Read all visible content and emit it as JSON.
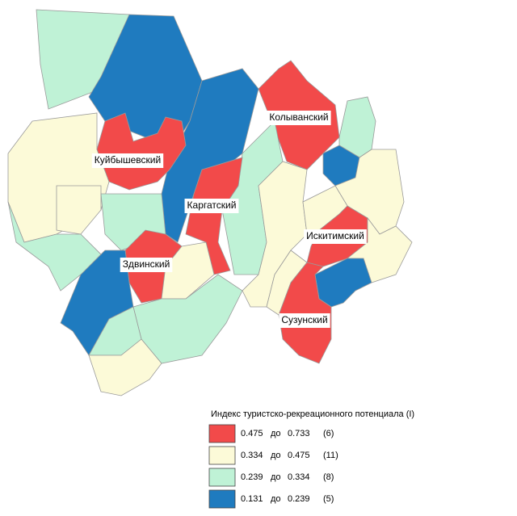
{
  "districts": [
    "Куйбышевский",
    "Колыванский",
    "Каргатский",
    "Искитимский",
    "Здвинский",
    "Сузунский"
  ],
  "legend": {
    "title": "Индекс туристско-рекреационного потенциала (I)",
    "items": [
      {
        "from": "0.475",
        "word": "до",
        "to": "0.733",
        "count": "(6)",
        "color": "#f24a4a"
      },
      {
        "from": "0.334",
        "word": "до",
        "to": "0.475",
        "count": "(11)",
        "color": "#fcfad8"
      },
      {
        "from": "0.239",
        "word": "до",
        "to": "0.334",
        "count": "(8)",
        "color": "#bff2d6"
      },
      {
        "from": "0.131",
        "word": "до",
        "to": "0.239",
        "count": "(5)",
        "color": "#1f7bbf"
      }
    ]
  }
}
